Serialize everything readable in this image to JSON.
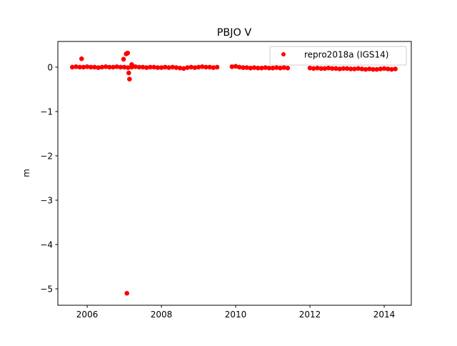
{
  "chart_data": {
    "type": "scatter",
    "title": "PBJO V",
    "xlabel": "",
    "ylabel": "m",
    "xlim": [
      2005.21,
      2014.73
    ],
    "ylim": [
      -5.37,
      0.58
    ],
    "xticks": [
      2006,
      2008,
      2010,
      2012,
      2014
    ],
    "yticks": [
      0,
      -1,
      -2,
      -3,
      -4,
      -5
    ],
    "ytick_labels": [
      "0",
      "−1",
      "−2",
      "−3",
      "−4",
      "−5"
    ],
    "grid": false,
    "legend_placement": "top-right",
    "series": [
      {
        "name": "repro2018a (IGS14)",
        "color": "#ff0000",
        "marker": "circle",
        "points": [
          [
            2005.6,
            0
          ],
          [
            2005.7,
            0.01
          ],
          [
            2005.8,
            0
          ],
          [
            2005.9,
            0
          ],
          [
            2006.0,
            0.01
          ],
          [
            2006.1,
            0
          ],
          [
            2006.2,
            0
          ],
          [
            2006.3,
            -0.01
          ],
          [
            2006.4,
            0
          ],
          [
            2006.5,
            0.01
          ],
          [
            2006.6,
            0
          ],
          [
            2006.7,
            0
          ],
          [
            2006.8,
            0.01
          ],
          [
            2006.9,
            0
          ],
          [
            2007.0,
            0
          ],
          [
            2007.1,
            -0.01
          ],
          [
            2007.2,
            0
          ],
          [
            2007.3,
            0.01
          ],
          [
            2007.4,
            0
          ],
          [
            2007.5,
            0
          ],
          [
            2007.6,
            -0.01
          ],
          [
            2007.7,
            0
          ],
          [
            2007.8,
            0
          ],
          [
            2007.9,
            -0.01
          ],
          [
            2008.0,
            -0.01
          ],
          [
            2008.1,
            0
          ],
          [
            2008.2,
            -0.01
          ],
          [
            2008.3,
            0
          ],
          [
            2008.4,
            -0.01
          ],
          [
            2008.5,
            -0.02
          ],
          [
            2008.6,
            -0.03
          ],
          [
            2008.7,
            -0.01
          ],
          [
            2008.8,
            0
          ],
          [
            2008.9,
            -0.01
          ],
          [
            2009.0,
            0
          ],
          [
            2009.1,
            0.01
          ],
          [
            2009.2,
            0
          ],
          [
            2009.3,
            0
          ],
          [
            2009.4,
            -0.01
          ],
          [
            2009.5,
            0
          ],
          [
            2009.9,
            0.01
          ],
          [
            2010.0,
            0.02
          ],
          [
            2010.1,
            0
          ],
          [
            2010.2,
            -0.01
          ],
          [
            2010.3,
            -0.01
          ],
          [
            2010.4,
            -0.02
          ],
          [
            2010.5,
            -0.01
          ],
          [
            2010.6,
            -0.02
          ],
          [
            2010.7,
            -0.02
          ],
          [
            2010.8,
            -0.01
          ],
          [
            2010.9,
            -0.02
          ],
          [
            2011.0,
            -0.02
          ],
          [
            2011.1,
            -0.01
          ],
          [
            2011.2,
            -0.02
          ],
          [
            2011.3,
            -0.01
          ],
          [
            2011.4,
            -0.02
          ],
          [
            2012.0,
            -0.02
          ],
          [
            2012.1,
            -0.03
          ],
          [
            2012.2,
            -0.02
          ],
          [
            2012.3,
            -0.03
          ],
          [
            2012.4,
            -0.03
          ],
          [
            2012.5,
            -0.02
          ],
          [
            2012.6,
            -0.03
          ],
          [
            2012.7,
            -0.03
          ],
          [
            2012.8,
            -0.04
          ],
          [
            2012.9,
            -0.03
          ],
          [
            2013.0,
            -0.03
          ],
          [
            2013.1,
            -0.04
          ],
          [
            2013.2,
            -0.04
          ],
          [
            2013.3,
            -0.03
          ],
          [
            2013.4,
            -0.04
          ],
          [
            2013.5,
            -0.05
          ],
          [
            2013.6,
            -0.04
          ],
          [
            2013.7,
            -0.05
          ],
          [
            2013.8,
            -0.05
          ],
          [
            2013.9,
            -0.04
          ],
          [
            2014.0,
            -0.03
          ],
          [
            2014.1,
            -0.04
          ],
          [
            2014.2,
            -0.05
          ],
          [
            2014.3,
            -0.04
          ],
          [
            2005.85,
            0.19
          ],
          [
            2006.98,
            0.18
          ],
          [
            2007.05,
            0.3
          ],
          [
            2007.09,
            0.32
          ],
          [
            2007.12,
            -0.13
          ],
          [
            2007.14,
            -0.27
          ],
          [
            2007.2,
            0.06
          ],
          [
            2007.07,
            -5.1
          ]
        ]
      }
    ]
  }
}
